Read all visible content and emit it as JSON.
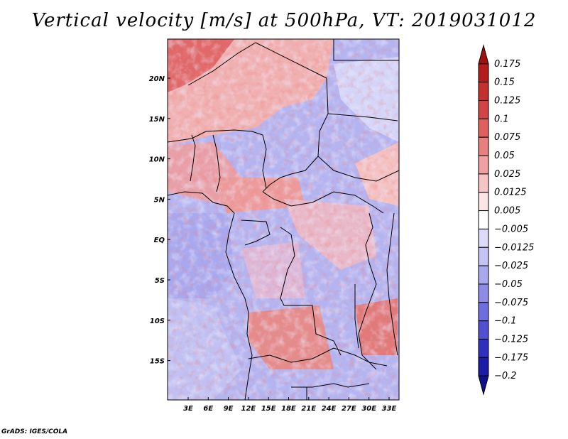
{
  "title": "Vertical velocity [m/s] at 500hPa, VT: 2019031012",
  "credit": "GrADS: IGES/COLA",
  "map": {
    "lat_ticks": [
      "20N",
      "15N",
      "10N",
      "5N",
      "EQ",
      "5S",
      "10S",
      "15S"
    ],
    "lon_ticks": [
      "3E",
      "6E",
      "9E",
      "12E",
      "15E",
      "18E",
      "21E",
      "24E",
      "27E",
      "30E",
      "33E"
    ]
  },
  "colorbar": {
    "labels": [
      "0.175",
      "0.15",
      "0.125",
      "0.1",
      "0.075",
      "0.05",
      "0.025",
      "0.0125",
      "0.005",
      "−0.005",
      "−0.0125",
      "−0.025",
      "−0.05",
      "−0.075",
      "−0.1",
      "−0.125",
      "−0.175",
      "−0.2"
    ],
    "colors": [
      "#a01010",
      "#b41c1c",
      "#c43030",
      "#d44444",
      "#e06060",
      "#e88080",
      "#f0a0a0",
      "#f6c4c4",
      "#fbe4e4",
      "#ffffff",
      "#dcdcfa",
      "#c4c4f4",
      "#a8a8ee",
      "#8c8ce6",
      "#6e6ede",
      "#5050d0",
      "#3030c0",
      "#1c1ca8",
      "#10108c"
    ]
  }
}
